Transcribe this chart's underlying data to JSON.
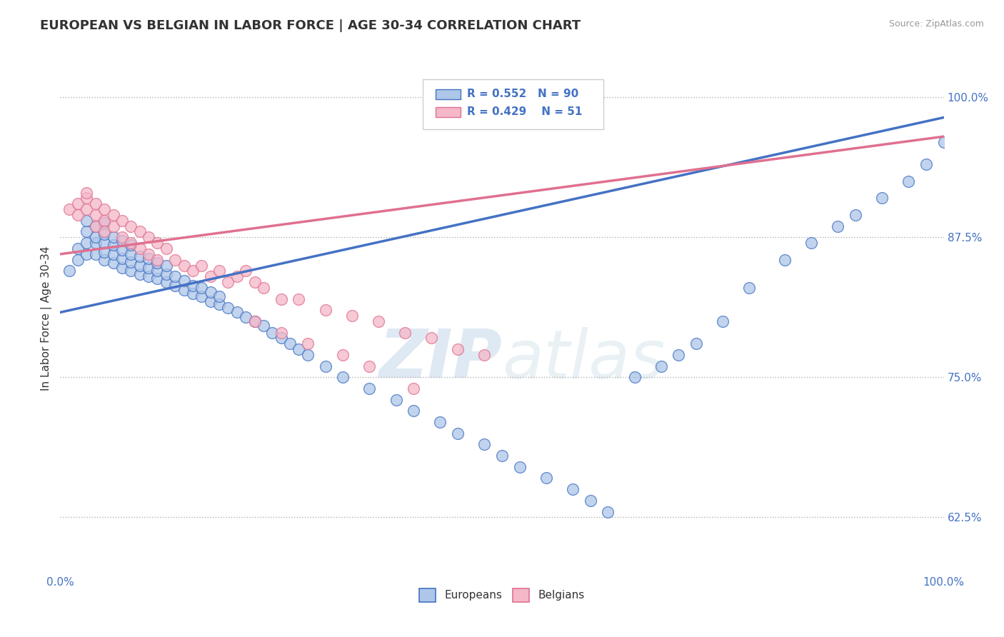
{
  "title": "EUROPEAN VS BELGIAN IN LABOR FORCE | AGE 30-34 CORRELATION CHART",
  "source_text": "Source: ZipAtlas.com",
  "ylabel": "In Labor Force | Age 30-34",
  "xlim": [
    0.0,
    1.0
  ],
  "ylim": [
    0.575,
    1.03
  ],
  "yticks": [
    0.625,
    0.75,
    0.875,
    1.0
  ],
  "ytick_labels": [
    "62.5%",
    "75.0%",
    "87.5%",
    "100.0%"
  ],
  "xticks": [
    0.0,
    1.0
  ],
  "xtick_labels": [
    "0.0%",
    "100.0%"
  ],
  "r_european": 0.552,
  "n_european": 90,
  "r_belgian": 0.429,
  "n_belgian": 51,
  "european_color": "#aec6e8",
  "belgian_color": "#f4b8c8",
  "european_line_color": "#4472c4",
  "belgian_line_color": "#e07090",
  "legend_label_european": "Europeans",
  "legend_label_belgian": "Belgians",
  "watermark_zip": "ZIP",
  "watermark_atlas": "atlas",
  "background_color": "#ffffff",
  "title_fontsize": 13,
  "axis_label_fontsize": 11,
  "tick_fontsize": 11,
  "dotted_line_color": "#b0b0b0",
  "european_scatter": {
    "x": [
      0.01,
      0.02,
      0.02,
      0.03,
      0.03,
      0.03,
      0.03,
      0.04,
      0.04,
      0.04,
      0.04,
      0.05,
      0.05,
      0.05,
      0.05,
      0.05,
      0.06,
      0.06,
      0.06,
      0.06,
      0.07,
      0.07,
      0.07,
      0.07,
      0.08,
      0.08,
      0.08,
      0.08,
      0.09,
      0.09,
      0.09,
      0.1,
      0.1,
      0.1,
      0.11,
      0.11,
      0.11,
      0.12,
      0.12,
      0.12,
      0.13,
      0.13,
      0.14,
      0.14,
      0.15,
      0.15,
      0.16,
      0.16,
      0.17,
      0.17,
      0.18,
      0.18,
      0.19,
      0.2,
      0.21,
      0.22,
      0.23,
      0.24,
      0.25,
      0.26,
      0.27,
      0.28,
      0.3,
      0.32,
      0.35,
      0.38,
      0.4,
      0.43,
      0.45,
      0.48,
      0.5,
      0.52,
      0.55,
      0.58,
      0.6,
      0.62,
      0.65,
      0.68,
      0.7,
      0.72,
      0.75,
      0.78,
      0.82,
      0.85,
      0.88,
      0.9,
      0.93,
      0.96,
      0.98,
      1.0
    ],
    "y": [
      0.845,
      0.855,
      0.865,
      0.86,
      0.87,
      0.88,
      0.89,
      0.86,
      0.87,
      0.875,
      0.885,
      0.855,
      0.862,
      0.87,
      0.878,
      0.888,
      0.852,
      0.86,
      0.868,
      0.875,
      0.848,
      0.856,
      0.864,
      0.872,
      0.845,
      0.853,
      0.86,
      0.868,
      0.842,
      0.85,
      0.858,
      0.84,
      0.848,
      0.856,
      0.838,
      0.845,
      0.852,
      0.835,
      0.842,
      0.85,
      0.832,
      0.84,
      0.828,
      0.836,
      0.825,
      0.832,
      0.822,
      0.83,
      0.818,
      0.826,
      0.815,
      0.822,
      0.812,
      0.808,
      0.804,
      0.8,
      0.796,
      0.79,
      0.785,
      0.78,
      0.775,
      0.77,
      0.76,
      0.75,
      0.74,
      0.73,
      0.72,
      0.71,
      0.7,
      0.69,
      0.68,
      0.67,
      0.66,
      0.65,
      0.64,
      0.63,
      0.75,
      0.76,
      0.77,
      0.78,
      0.8,
      0.83,
      0.855,
      0.87,
      0.885,
      0.895,
      0.91,
      0.925,
      0.94,
      0.96
    ]
  },
  "belgian_scatter": {
    "x": [
      0.01,
      0.02,
      0.02,
      0.03,
      0.03,
      0.03,
      0.04,
      0.04,
      0.04,
      0.05,
      0.05,
      0.05,
      0.06,
      0.06,
      0.07,
      0.07,
      0.08,
      0.08,
      0.09,
      0.09,
      0.1,
      0.1,
      0.11,
      0.11,
      0.12,
      0.13,
      0.14,
      0.15,
      0.16,
      0.17,
      0.18,
      0.19,
      0.2,
      0.21,
      0.22,
      0.23,
      0.25,
      0.27,
      0.3,
      0.33,
      0.36,
      0.39,
      0.42,
      0.45,
      0.48,
      0.22,
      0.25,
      0.28,
      0.32,
      0.35,
      0.4
    ],
    "y": [
      0.9,
      0.905,
      0.895,
      0.91,
      0.9,
      0.915,
      0.905,
      0.895,
      0.885,
      0.9,
      0.89,
      0.88,
      0.895,
      0.885,
      0.89,
      0.875,
      0.885,
      0.87,
      0.88,
      0.865,
      0.875,
      0.86,
      0.87,
      0.855,
      0.865,
      0.855,
      0.85,
      0.845,
      0.85,
      0.84,
      0.845,
      0.835,
      0.84,
      0.845,
      0.835,
      0.83,
      0.82,
      0.82,
      0.81,
      0.805,
      0.8,
      0.79,
      0.785,
      0.775,
      0.77,
      0.8,
      0.79,
      0.78,
      0.77,
      0.76,
      0.74
    ]
  },
  "eu_trend_x": [
    0.0,
    1.0
  ],
  "eu_trend_y": [
    0.808,
    0.982
  ],
  "be_trend_x": [
    0.0,
    1.0
  ],
  "be_trend_y": [
    0.86,
    0.965
  ]
}
